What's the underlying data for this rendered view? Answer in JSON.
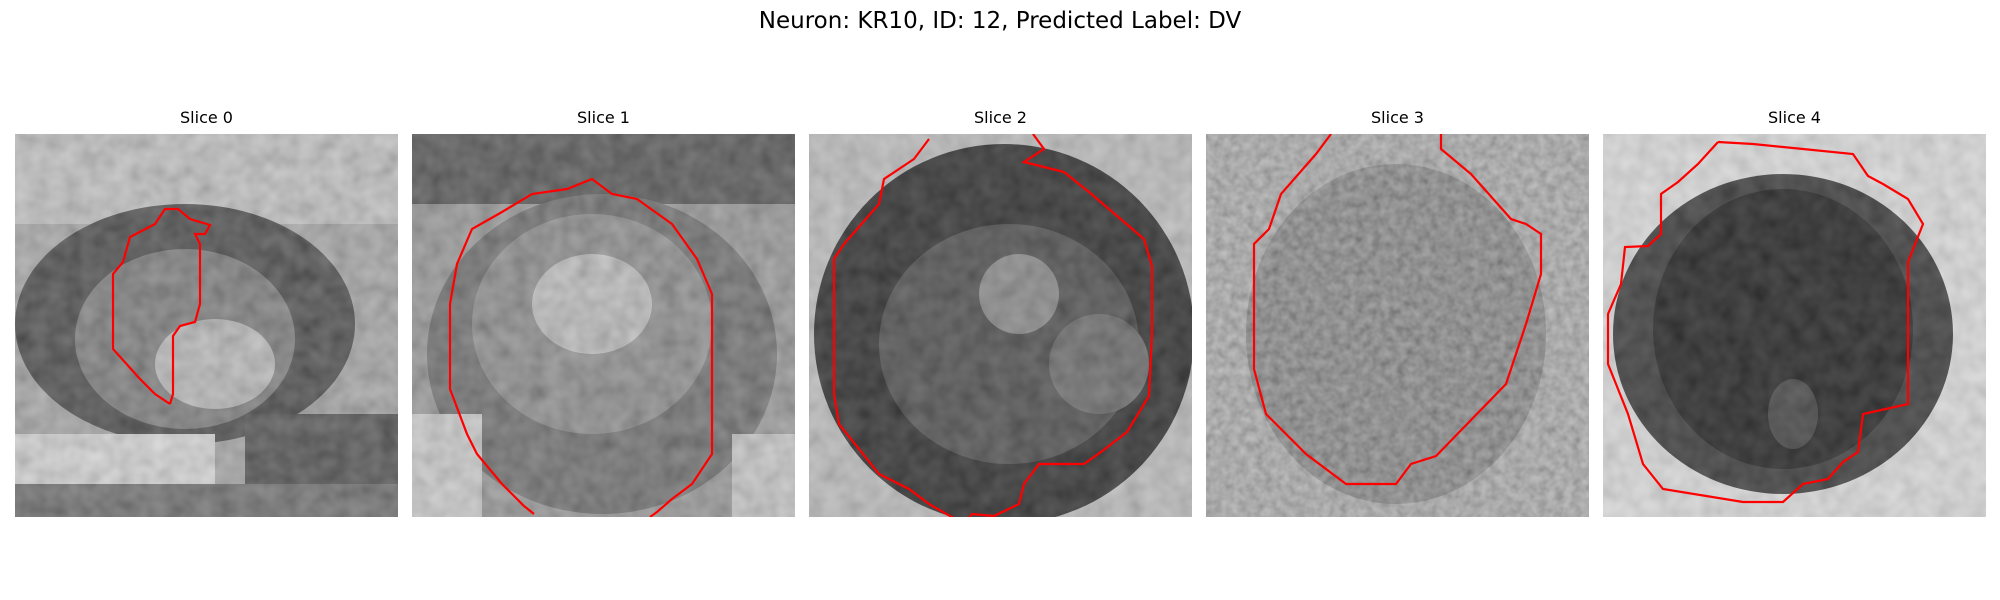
{
  "figure": {
    "title": "Neuron: KR10, ID: 12, Predicted Label: DV",
    "contour_color": "#ff0000"
  },
  "slices": [
    {
      "label": "Slice 0"
    },
    {
      "label": "Slice 1"
    },
    {
      "label": "Slice 2"
    },
    {
      "label": "Slice 3"
    },
    {
      "label": "Slice 4"
    }
  ]
}
